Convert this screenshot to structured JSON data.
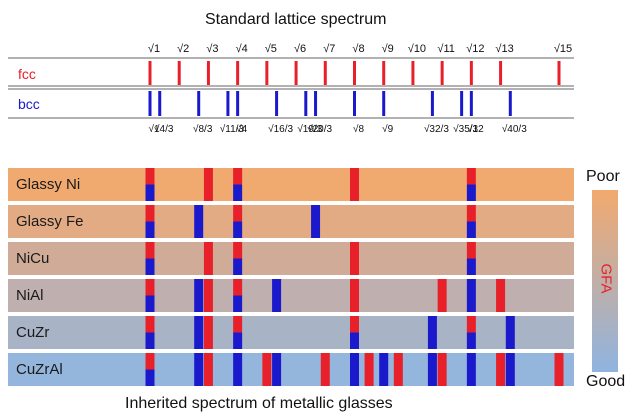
{
  "title_top": "Standard lattice spectrum",
  "title_bottom": "Inherited spectrum of metallic glasses",
  "lattices": {
    "fcc": {
      "label": "fcc",
      "color": "#e8202a",
      "ticks": [
        "√1",
        "√2",
        "√3",
        "√4",
        "√5",
        "√6",
        "√7",
        "√8",
        "√9",
        "√10",
        "√11",
        "√12",
        "√13",
        "√15"
      ],
      "values": [
        1,
        2,
        3,
        4,
        5,
        6,
        7,
        8,
        9,
        10,
        11,
        12,
        13,
        15
      ]
    },
    "bcc": {
      "label": "bcc",
      "color": "#1a1acc",
      "ticks": [
        "√1",
        "√4/3",
        "√8/3",
        "√11/3",
        "√4",
        "√16/3",
        "√19/3",
        "√20/3",
        "√8",
        "√9",
        "√32/3",
        "√35/3",
        "√12",
        "√40/3"
      ],
      "values": [
        1,
        1.333,
        2.667,
        3.667,
        4,
        5.333,
        6.333,
        6.667,
        8,
        9,
        10.667,
        11.667,
        12,
        13.333
      ]
    }
  },
  "glasses": [
    {
      "name": "Glassy Ni",
      "fcc": [
        1,
        3,
        4,
        8,
        12
      ],
      "bcc": [
        1,
        4,
        12
      ]
    },
    {
      "name": "Glassy Fe",
      "fcc": [
        1,
        4,
        12
      ],
      "bcc": [
        1,
        2.667,
        4,
        6.667,
        12
      ]
    },
    {
      "name": "NiCu",
      "fcc": [
        1,
        3,
        4,
        8,
        12
      ],
      "bcc": [
        1,
        4,
        12
      ]
    },
    {
      "name": "NiAl",
      "fcc": [
        1,
        3,
        4,
        8,
        11,
        13
      ],
      "bcc": [
        1,
        2.667,
        4,
        5.333,
        12
      ]
    },
    {
      "name": "CuZr",
      "fcc": [
        1,
        3,
        4,
        8,
        12
      ],
      "bcc": [
        1,
        2.667,
        4,
        8,
        10.667,
        12,
        13.333
      ]
    },
    {
      "name": "CuZrAl",
      "fcc": [
        1,
        3,
        5,
        7,
        8.5,
        9.5,
        11,
        13,
        15
      ],
      "bcc": [
        1,
        2.667,
        4,
        5.333,
        8,
        9,
        10.667,
        12,
        13.333
      ]
    }
  ],
  "gfa": {
    "label": "GFA",
    "poor": "Poor",
    "good": "Good",
    "color_poor": "#f2a96e",
    "color_good": "#8fb4e0"
  }
}
